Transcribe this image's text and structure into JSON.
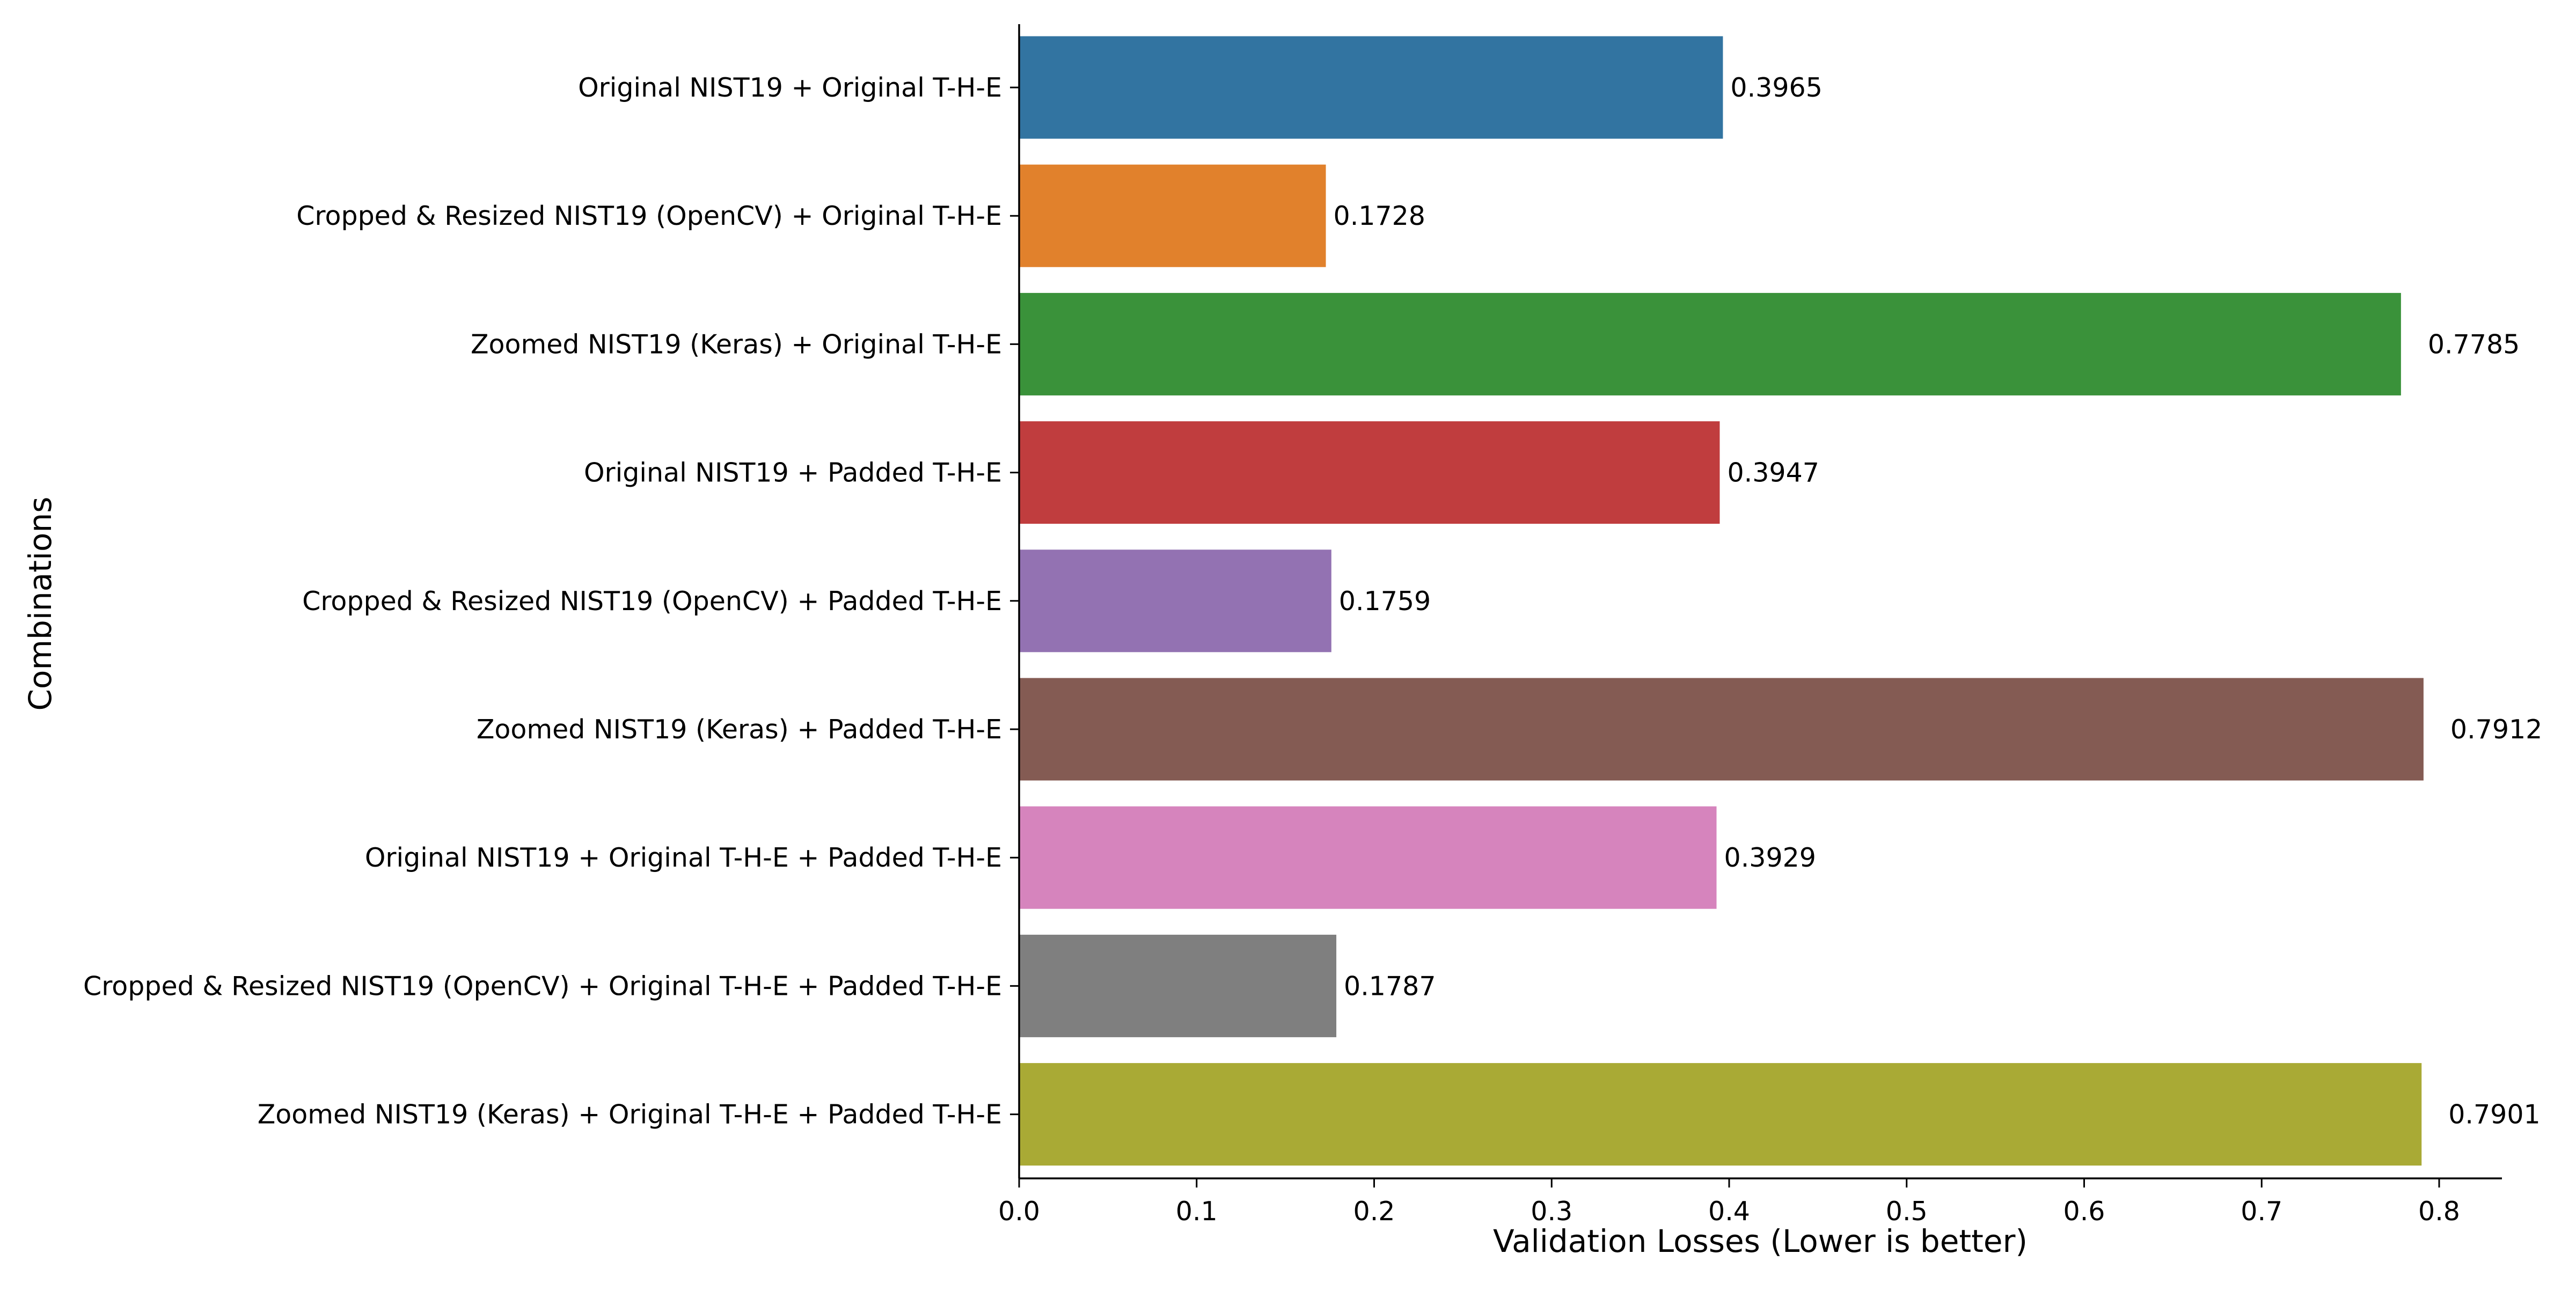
{
  "chart_data": {
    "type": "bar",
    "orientation": "horizontal",
    "title": "",
    "xlabel": "Validation Losses (Lower is better)",
    "ylabel": "Combinations",
    "xlim": [
      0,
      0.83
    ],
    "xticks": [
      "0.0",
      "0.1",
      "0.2",
      "0.3",
      "0.4",
      "0.5",
      "0.6",
      "0.7",
      "0.8"
    ],
    "grid": false,
    "legend": "none",
    "categories": [
      "Original NIST19 + Original T-H-E",
      "Cropped & Resized NIST19 (OpenCV) + Original T-H-E",
      "Zoomed NIST19 (Keras) + Original T-H-E",
      "Original NIST19 + Padded T-H-E",
      "Cropped & Resized NIST19 (OpenCV) + Padded T-H-E",
      "Zoomed NIST19 (Keras) + Padded T-H-E",
      "Original NIST19 + Original T-H-E + Padded T-H-E",
      "Cropped & Resized NIST19 (OpenCV) + Original T-H-E + Padded T-H-E",
      "Zoomed NIST19 (Keras) + Original T-H-E + Padded T-H-E"
    ],
    "values": [
      0.3965,
      0.1728,
      0.7785,
      0.3947,
      0.1759,
      0.7912,
      0.3929,
      0.1787,
      0.7901
    ],
    "value_labels": [
      "0.3965",
      "0.1728",
      "0.7785",
      "0.3947",
      "0.1759",
      "0.7912",
      "0.3929",
      "0.1787",
      "0.7901"
    ],
    "colors": [
      "#3274a1",
      "#e1812c",
      "#3a923a",
      "#c03d3e",
      "#9372b2",
      "#845b53",
      "#d684bd",
      "#7f7f7f",
      "#a9aa35"
    ]
  }
}
